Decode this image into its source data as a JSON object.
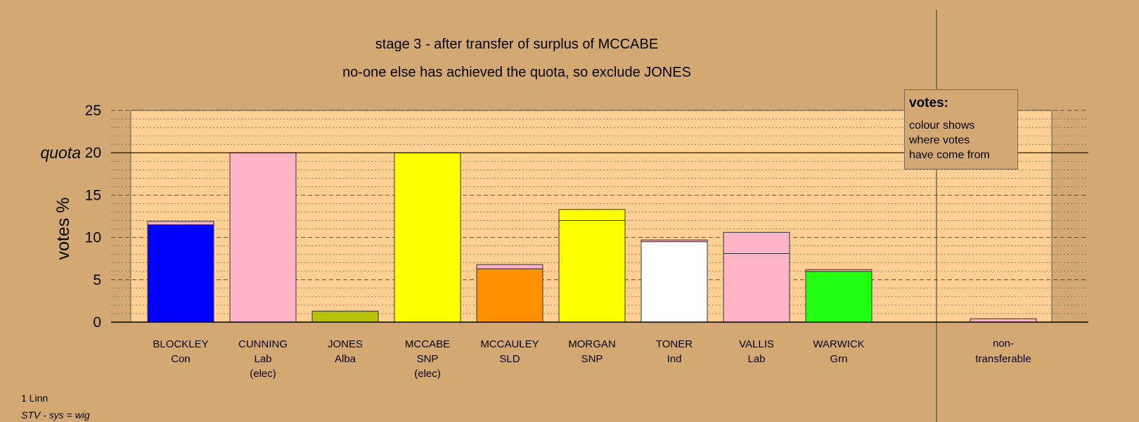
{
  "chart_data": {
    "type": "bar",
    "title": "stage 3 - after transfer of surplus of MCCABE",
    "subtitle": "no-one else has achieved the quota, so exclude JONES",
    "ylabel": "votes %",
    "ylim": [
      0,
      25
    ],
    "yticks": [
      "0",
      "5",
      "10",
      "15",
      "20",
      "25"
    ],
    "quota_label": "quota",
    "quota_value": 20,
    "legend": {
      "title": "votes:",
      "lines": [
        "colour shows",
        "where votes",
        "have come from"
      ]
    },
    "categories": [
      {
        "name": "BLOCKLEY",
        "party": "Con",
        "note": "",
        "segments": [
          {
            "value": 11.5,
            "color": "#0000ff"
          },
          {
            "value": 0.4,
            "color": "#ffb3c6"
          }
        ]
      },
      {
        "name": "CUNNING",
        "party": "Lab",
        "note": "(elec)",
        "segments": [
          {
            "value": 20,
            "color": "#ffb3c6"
          }
        ]
      },
      {
        "name": "JONES",
        "party": "Alba",
        "note": "",
        "segments": [
          {
            "value": 1.3,
            "color": "#b8c10a"
          }
        ]
      },
      {
        "name": "MCCABE",
        "party": "SNP",
        "note": "(elec)",
        "segments": [
          {
            "value": 20,
            "color": "#ffff00"
          }
        ]
      },
      {
        "name": "MCCAULEY",
        "party": "SLD",
        "note": "",
        "segments": [
          {
            "value": 6.3,
            "color": "#ff9100"
          },
          {
            "value": 0.5,
            "color": "#ffb3c6"
          }
        ]
      },
      {
        "name": "MORGAN",
        "party": "SNP",
        "note": "",
        "segments": [
          {
            "value": 12.0,
            "color": "#ffff00"
          },
          {
            "value": 1.3,
            "color": "#ffff00"
          }
        ]
      },
      {
        "name": "TONER",
        "party": "Ind",
        "note": "",
        "segments": [
          {
            "value": 9.5,
            "color": "#ffffff"
          },
          {
            "value": 0.2,
            "color": "#ffb3c6"
          }
        ]
      },
      {
        "name": "VALLIS",
        "party": "Lab",
        "note": "",
        "segments": [
          {
            "value": 8.1,
            "color": "#ffb3c6"
          },
          {
            "value": 2.5,
            "color": "#ffb3c6"
          }
        ]
      },
      {
        "name": "WARWICK",
        "party": "Grn",
        "note": "",
        "segments": [
          {
            "value": 6.0,
            "color": "#22ff11"
          },
          {
            "value": 0.2,
            "color": "#ffb3c6"
          }
        ]
      }
    ],
    "nontransferable": {
      "label_line1": "non-",
      "label_line2": "transferable",
      "segments": [
        {
          "value": 0.4,
          "color": "#ffb3c6"
        }
      ]
    },
    "grid": true,
    "colors": {
      "background": "#d4a873",
      "plot_background": "#ffcf93",
      "bar_outline": "#333333"
    }
  },
  "footer": {
    "line1": "1 Linn",
    "line2": "STV - sys = wig"
  }
}
